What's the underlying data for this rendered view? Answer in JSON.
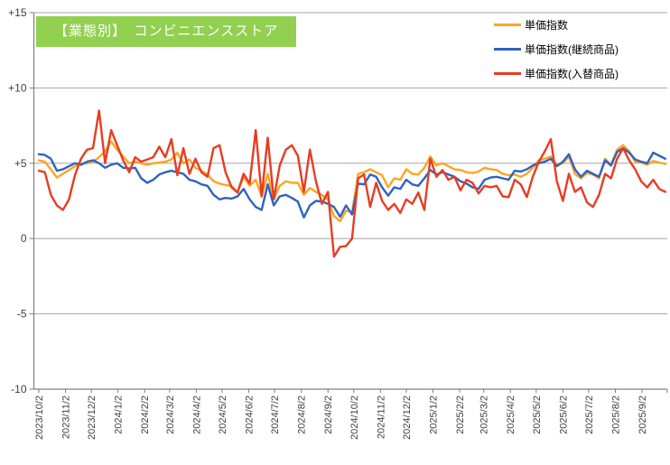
{
  "title": {
    "text": "【業態別】　コンビニエンスストア",
    "bg_color": "#92d050",
    "text_color": "#ffffff"
  },
  "legend": {
    "position": "top-right",
    "items": [
      {
        "label": "単価指数",
        "color": "#ffa422"
      },
      {
        "label": "単価指数(継続商品)",
        "color": "#2f63c1"
      },
      {
        "label": "単価指数(入替商品)",
        "color": "#e83c23"
      }
    ]
  },
  "axis": {
    "line_color": "#7f7f7f",
    "grid_color": "#a6a6a6",
    "label_color": "#3f3f3f",
    "y_tick_labels": [
      "+15",
      "+10",
      "+5",
      "0",
      "-5",
      "-10"
    ],
    "y_tick_values": [
      15,
      10,
      5,
      0,
      -5,
      -10
    ]
  },
  "chart_data": {
    "type": "line",
    "title": "【業態別】　コンビニエンスストア",
    "xlabel": "",
    "ylabel": "",
    "ylim": [
      -10,
      15
    ],
    "grid": "horizontal",
    "legend_position": "top-right",
    "x_start_date": "2023/10/2",
    "x_interval_days": 7,
    "x_tick_labels": [
      "2023/10/2",
      "2023/11/2",
      "2023/12/2",
      "2024/1/2",
      "2024/2/2",
      "2024/3/2",
      "2024/4/2",
      "2024/5/2",
      "2024/6/2",
      "2024/7/2",
      "2024/8/2",
      "2024/9/2",
      "2024/10/2",
      "2024/11/2",
      "2024/12/2",
      "2025/1/2",
      "2025/2/2",
      "2025/3/2",
      "2025/4/2",
      "2025/5/2",
      "2025/6/2",
      "2025/7/2",
      "2025/8/2",
      "2025/9/2"
    ],
    "series": [
      {
        "name": "単価指数",
        "color": "#ffa422",
        "values": [
          5.2,
          5.1,
          4.6,
          4.05,
          4.3,
          4.55,
          4.8,
          4.95,
          5.0,
          5.1,
          5.4,
          5.8,
          6.45,
          5.9,
          5.45,
          5.0,
          5.1,
          5.0,
          4.9,
          5.0,
          5.05,
          5.1,
          5.25,
          5.7,
          5.0,
          5.25,
          4.7,
          4.5,
          4.25,
          3.8,
          3.65,
          3.55,
          3.5,
          3.1,
          4.1,
          3.5,
          3.9,
          2.8,
          4.3,
          2.6,
          3.5,
          3.8,
          3.7,
          3.7,
          2.9,
          3.35,
          3.1,
          2.9,
          2.6,
          1.5,
          1.15,
          1.85,
          1.75,
          4.3,
          4.4,
          4.6,
          4.4,
          4.2,
          3.4,
          4.0,
          3.9,
          4.6,
          4.3,
          4.25,
          4.7,
          5.45,
          4.85,
          5.0,
          4.8,
          4.6,
          4.55,
          4.4,
          4.35,
          4.45,
          4.7,
          4.6,
          4.55,
          4.3,
          4.2,
          4.25,
          4.1,
          4.3,
          4.7,
          5.2,
          5.3,
          5.45,
          4.9,
          5.0,
          5.45,
          4.3,
          4.0,
          4.35,
          4.25,
          4.0,
          5.3,
          4.9,
          5.9,
          6.2,
          5.8,
          5.1,
          5.05,
          4.9,
          5.15,
          5.05,
          4.95
        ]
      },
      {
        "name": "単価指数(継続商品)",
        "color": "#2f63c1",
        "values": [
          5.6,
          5.55,
          5.3,
          4.5,
          4.6,
          4.8,
          5.0,
          4.9,
          5.1,
          5.2,
          5.0,
          4.7,
          4.9,
          5.0,
          4.7,
          4.65,
          4.7,
          4.0,
          3.7,
          3.9,
          4.25,
          4.4,
          4.5,
          4.4,
          4.3,
          3.9,
          3.8,
          3.6,
          3.5,
          2.9,
          2.6,
          2.7,
          2.65,
          2.8,
          3.3,
          2.6,
          2.1,
          1.9,
          3.6,
          2.2,
          2.8,
          2.9,
          2.7,
          2.45,
          1.4,
          2.2,
          2.5,
          2.45,
          2.3,
          2.1,
          1.45,
          2.2,
          1.6,
          3.65,
          3.6,
          4.25,
          4.1,
          3.4,
          2.85,
          3.4,
          3.3,
          3.9,
          3.6,
          3.5,
          4.0,
          4.55,
          4.25,
          4.4,
          4.25,
          4.1,
          3.8,
          3.65,
          3.4,
          3.3,
          3.9,
          4.05,
          4.1,
          4.0,
          3.9,
          4.5,
          4.45,
          4.6,
          4.85,
          5.0,
          5.1,
          5.3,
          4.8,
          5.1,
          5.6,
          4.6,
          4.1,
          4.5,
          4.3,
          4.1,
          5.2,
          4.85,
          5.75,
          6.0,
          5.7,
          5.25,
          5.1,
          5.0,
          5.7,
          5.5,
          5.3
        ]
      },
      {
        "name": "単価指数(入替商品)",
        "color": "#e83c23",
        "values": [
          4.5,
          4.4,
          2.9,
          2.2,
          1.9,
          2.6,
          4.2,
          5.3,
          5.9,
          6.0,
          8.5,
          5.0,
          7.2,
          6.2,
          5.2,
          4.4,
          5.4,
          5.1,
          5.25,
          5.4,
          6.1,
          5.4,
          6.6,
          4.2,
          6.0,
          4.3,
          5.3,
          4.4,
          4.1,
          6.0,
          6.2,
          4.4,
          3.4,
          3.05,
          4.3,
          3.65,
          7.2,
          2.8,
          6.7,
          2.6,
          4.85,
          5.9,
          6.2,
          5.5,
          3.1,
          5.9,
          3.8,
          2.3,
          3.1,
          -1.2,
          -0.55,
          -0.5,
          0.0,
          4.0,
          4.25,
          2.1,
          3.7,
          2.5,
          1.9,
          2.3,
          1.7,
          2.6,
          2.3,
          3.05,
          1.9,
          5.3,
          4.1,
          4.55,
          3.9,
          4.1,
          3.2,
          3.9,
          3.7,
          3.0,
          3.5,
          3.4,
          3.5,
          2.8,
          2.75,
          3.9,
          3.6,
          2.75,
          4.1,
          5.1,
          5.8,
          6.6,
          3.8,
          2.5,
          4.3,
          3.1,
          3.4,
          2.4,
          2.1,
          2.9,
          4.3,
          4.0,
          5.3,
          6.0,
          5.2,
          4.6,
          3.8,
          3.4,
          3.9,
          3.3,
          3.1
        ]
      }
    ]
  }
}
